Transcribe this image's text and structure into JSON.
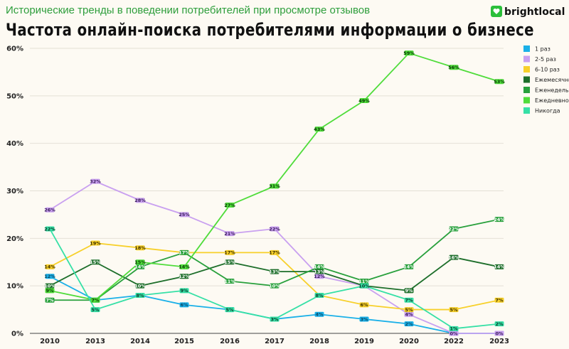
{
  "header": {
    "subtitle": "Исторические тренды в поведении потребителей при просмотре отзывов",
    "title": "Частота онлайн-поиска потребителями информации о бизнесе",
    "logo": "brightlocal"
  },
  "chart_data": {
    "type": "line",
    "title": "Частота онлайн-поиска потребителями информации о бизнесе",
    "xlabel": "",
    "ylabel": "",
    "ylim": [
      0,
      60
    ],
    "yticks": [
      "0%",
      "10%",
      "20%",
      "30%",
      "40%",
      "50%",
      "60%"
    ],
    "legend_position": "right",
    "grid": true,
    "categories": [
      "2010",
      "2013",
      "2014",
      "2015",
      "2016",
      "2017",
      "2018",
      "2019",
      "2020",
      "2022",
      "2023"
    ],
    "series": [
      {
        "name": "1 раз",
        "color": "#1ab0e8",
        "text_color": "#0d4a66",
        "values": [
          12,
          7,
          8,
          6,
          5,
          3,
          4,
          3,
          2,
          0,
          0
        ],
        "labels": [
          "12%",
          "7%",
          "8%",
          "6%",
          "5%",
          "3%",
          "4%",
          "3%",
          "2%",
          "0%",
          "0%"
        ]
      },
      {
        "name": "2-5 раз",
        "color": "#c9a0f0",
        "text_color": "#3a1f5a",
        "values": [
          26,
          32,
          28,
          25,
          21,
          22,
          12,
          10,
          4,
          0,
          0
        ],
        "labels": [
          "26%",
          "32%",
          "28%",
          "25%",
          "21%",
          "22%",
          "12%",
          "10%",
          "4%",
          "0%",
          "0%"
        ]
      },
      {
        "name": "6-10 раз",
        "color": "#f7d02a",
        "text_color": "#3d3000",
        "values": [
          14,
          19,
          18,
          17,
          17,
          17,
          8,
          6,
          5,
          5,
          7
        ],
        "labels": [
          "14%",
          "19%",
          "18%",
          "17%",
          "17%",
          "17%",
          "8%",
          "6%",
          "5%",
          "5%",
          "7%"
        ]
      },
      {
        "name": "Ежемесячно",
        "color": "#1d6e2a",
        "text_color": "#ffffff",
        "values": [
          10,
          15,
          10,
          12,
          15,
          13,
          13,
          10,
          9,
          16,
          14
        ],
        "labels": [
          "10%",
          "15%",
          "10%",
          "12%",
          "15%",
          "13%",
          "13%",
          "10%",
          "9%",
          "16%",
          "14%"
        ]
      },
      {
        "name": "Еженедельно",
        "color": "#28a03c",
        "text_color": "#ffffff",
        "values": [
          7,
          7,
          14,
          17,
          11,
          10,
          14,
          11,
          14,
          22,
          24
        ],
        "labels": [
          "7%",
          "7%",
          "14%",
          "17%",
          "11%",
          "10%",
          "14%",
          "11%",
          "14%",
          "22%",
          "24%"
        ]
      },
      {
        "name": "Ежедневно",
        "color": "#4fdc3a",
        "text_color": "#0b3a08",
        "values": [
          9,
          7,
          15,
          14,
          27,
          31,
          43,
          49,
          59,
          56,
          53
        ],
        "labels": [
          "9%",
          "7%",
          "15%",
          "14%",
          "27%",
          "31%",
          "43%",
          "49%",
          "59%",
          "56%",
          "53%"
        ]
      },
      {
        "name": "Никогда",
        "color": "#36e0a6",
        "text_color": "#0b3a2a",
        "values": [
          22,
          5,
          8,
          9,
          5,
          3,
          8,
          10,
          7,
          1,
          2
        ],
        "labels": [
          "22%",
          "5%",
          "8%",
          "9%",
          "5%",
          "3%",
          "8%",
          "10%",
          "7%",
          "1%",
          "2%"
        ]
      }
    ]
  }
}
